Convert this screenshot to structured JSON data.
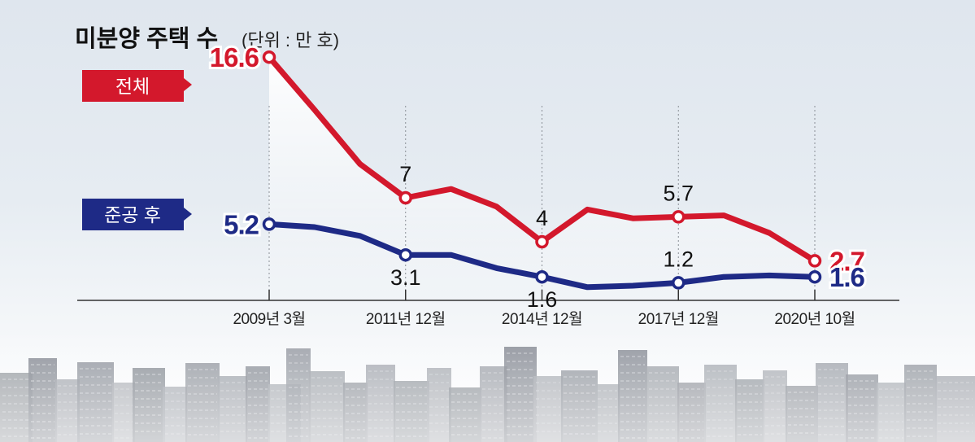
{
  "title": "미분양 주택 수",
  "unit": "(단위 : 만 호)",
  "colors": {
    "total": "#d3182c",
    "completed": "#1e2a86",
    "axis": "#333333"
  },
  "chart_data": {
    "type": "line",
    "title": "미분양 주택 수",
    "unit": "(단위 : 만 호)",
    "x_ticks": [
      "2009년 3월",
      "2011년 12월",
      "2014년 12월",
      "2017년 12월",
      "2020년 10월"
    ],
    "ylim": [
      0,
      18
    ],
    "grid": false,
    "series": [
      {
        "name": "전체",
        "color": "#d3182c",
        "values": [
          16.6,
          13.0,
          9.3,
          7.0,
          7.6,
          6.4,
          4.0,
          6.2,
          5.6,
          5.7,
          5.8,
          4.6,
          2.7
        ],
        "points": [
          {
            "index": 0,
            "value": 16.6,
            "label": "16.6",
            "style": "end",
            "tick": 0
          },
          {
            "index": 3,
            "value": 7.0,
            "label": "7",
            "style": "above",
            "tick": 1
          },
          {
            "index": 6,
            "value": 4.0,
            "label": "4",
            "style": "above",
            "tick": 2
          },
          {
            "index": 9,
            "value": 5.7,
            "label": "5.7",
            "style": "above",
            "tick": 3
          },
          {
            "index": 12,
            "value": 2.7,
            "label": "2.7",
            "style": "end",
            "tick": 4
          }
        ]
      },
      {
        "name": "준공 후",
        "color": "#1e2a86",
        "values": [
          5.2,
          5.0,
          4.4,
          3.1,
          3.1,
          2.2,
          1.6,
          0.9,
          1.0,
          1.2,
          1.6,
          1.7,
          1.6
        ],
        "points": [
          {
            "index": 0,
            "value": 5.2,
            "label": "5.2",
            "style": "end",
            "tick": 0
          },
          {
            "index": 3,
            "value": 3.1,
            "label": "3.1",
            "style": "below",
            "tick": 1
          },
          {
            "index": 6,
            "value": 1.6,
            "label": "1.6",
            "style": "below",
            "tick": 2
          },
          {
            "index": 9,
            "value": 1.2,
            "label": "1.2",
            "style": "above",
            "tick": 3
          },
          {
            "index": 12,
            "value": 1.6,
            "label": "1.6",
            "style": "end",
            "tick": 4
          }
        ]
      }
    ]
  }
}
